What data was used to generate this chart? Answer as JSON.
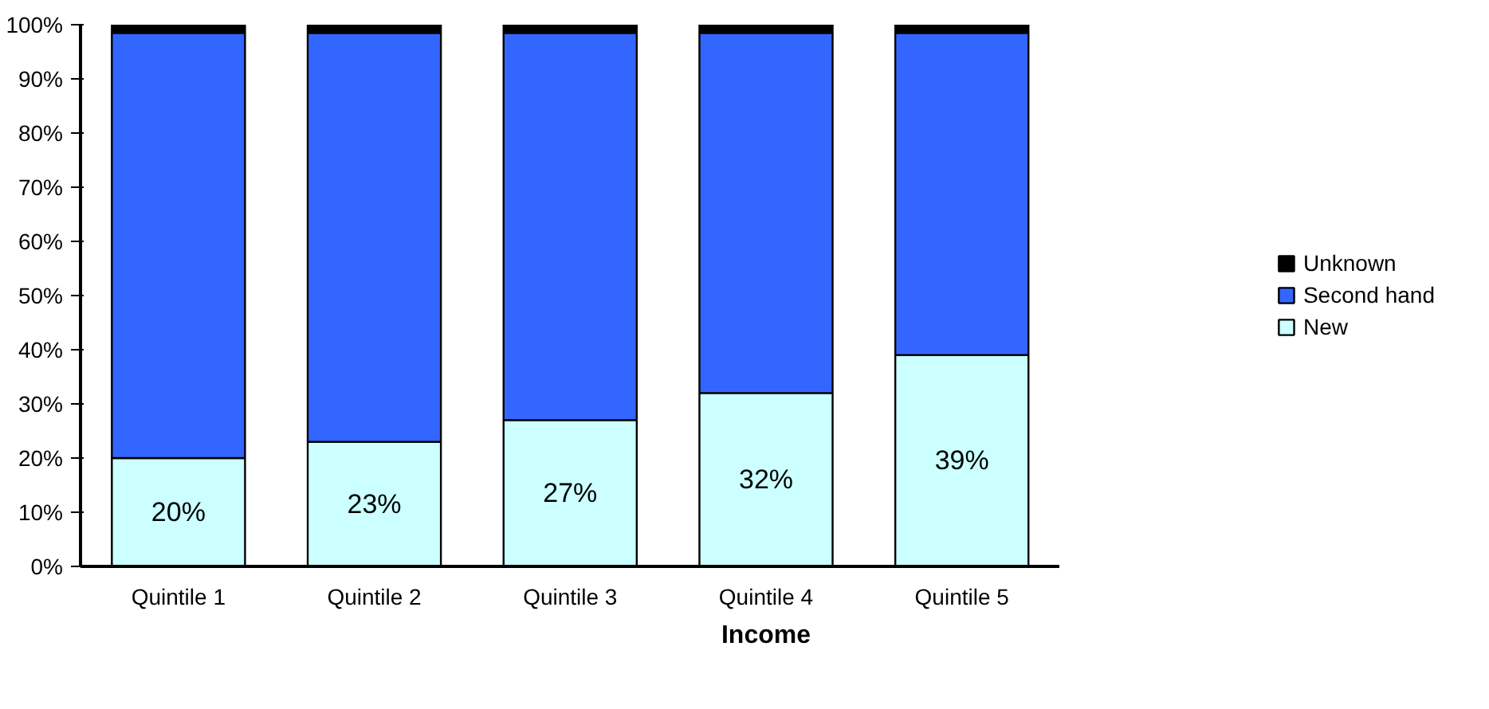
{
  "chart_data": {
    "type": "bar",
    "stacked": true,
    "xlabel": "Income",
    "categories": [
      "Quintile 1",
      "Quintile 2",
      "Quintile 3",
      "Quintile 4",
      "Quintile 5"
    ],
    "series": [
      {
        "name": "New",
        "color": "#ccffff",
        "values": [
          20,
          23,
          27,
          32,
          39
        ],
        "value_labels": [
          "20%",
          "23%",
          "27%",
          "32%",
          "39%"
        ]
      },
      {
        "name": "Second hand",
        "color": "#3366ff",
        "values": [
          78.5,
          75.5,
          71.5,
          66.5,
          59.5
        ]
      },
      {
        "name": "Unknown",
        "color": "#000000",
        "values": [
          1.5,
          1.5,
          1.5,
          1.5,
          1.5
        ]
      }
    ],
    "ylim": [
      0,
      100
    ],
    "yticks": [
      {
        "value": 0,
        "label": "0%"
      },
      {
        "value": 10,
        "label": "10%"
      },
      {
        "value": 20,
        "label": "20%"
      },
      {
        "value": 30,
        "label": "30%"
      },
      {
        "value": 40,
        "label": "40%"
      },
      {
        "value": 50,
        "label": "50%"
      },
      {
        "value": 60,
        "label": "60%"
      },
      {
        "value": 70,
        "label": "70%"
      },
      {
        "value": 80,
        "label": "80%"
      },
      {
        "value": 90,
        "label": "90%"
      },
      {
        "value": 100,
        "label": "100%"
      }
    ],
    "grid": false,
    "legend": "right"
  }
}
